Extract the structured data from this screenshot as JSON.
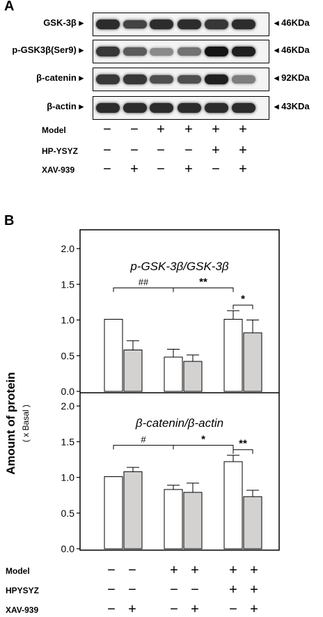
{
  "panel_a": {
    "letter": "A",
    "blots": [
      {
        "label": "GSK-3β",
        "kda": "46KDa",
        "intensities": [
          0.9,
          0.8,
          0.9,
          0.9,
          0.85,
          0.9
        ]
      },
      {
        "label": "p-GSK3β(Ser9)",
        "kda": "46KDa",
        "intensities": [
          0.85,
          0.7,
          0.5,
          0.6,
          1.0,
          0.95
        ]
      },
      {
        "label": "β-catenin",
        "kda": "92KDa",
        "intensities": [
          0.85,
          0.85,
          0.75,
          0.75,
          0.95,
          0.55
        ]
      },
      {
        "label": "β-actin",
        "kda": "43KDa",
        "intensities": [
          0.9,
          0.9,
          0.9,
          0.9,
          0.9,
          0.9
        ]
      }
    ],
    "conditions": [
      {
        "label": "Model",
        "signs": [
          "−",
          "−",
          "+",
          "+",
          "+",
          "+"
        ]
      },
      {
        "label": "HP-YSYZ",
        "signs": [
          "−",
          "−",
          "−",
          "−",
          "+",
          "+"
        ]
      },
      {
        "label": "XAV-939",
        "signs": [
          "−",
          "+",
          "−",
          "+",
          "−",
          "+"
        ]
      }
    ]
  },
  "panel_b": {
    "letter": "B",
    "y_axis_label": "Amount of protein",
    "y_axis_sublabel": "( x Basal )",
    "conditions": [
      {
        "label": "Model",
        "signs": [
          "−",
          "−",
          "+",
          "+",
          "+",
          "+"
        ]
      },
      {
        "label": "HPYSYZ",
        "signs": [
          "−",
          "−",
          "−",
          "−",
          "+",
          "+"
        ]
      },
      {
        "label": "XAV-939",
        "signs": [
          "−",
          "+",
          "−",
          "+",
          "−",
          "+"
        ]
      }
    ]
  },
  "chart_data": [
    {
      "type": "bar",
      "title": "p-GSK-3β/GSK-3β",
      "ylim": [
        0,
        2.2
      ],
      "yticks": [
        "0.0",
        "0.5",
        "1.0",
        "1.5",
        "2.0"
      ],
      "values": [
        1.01,
        0.58,
        0.48,
        0.42,
        1.01,
        0.82
      ],
      "errors": [
        0,
        0.13,
        0.11,
        0.09,
        0.12,
        0.18
      ],
      "colors": [
        "#ffffff",
        "#d4d1d1",
        "#ffffff",
        "#d4d1d1",
        "#ffffff",
        "#d4d1d1"
      ],
      "significance": [
        {
          "label": "##",
          "from": 0,
          "to": 2
        },
        {
          "label": "**",
          "from": 2,
          "to": 4
        },
        {
          "label": "*",
          "from": 4,
          "to": 5
        }
      ]
    },
    {
      "type": "bar",
      "title": "β-catenin/β-actin",
      "ylim": [
        0,
        2.2
      ],
      "yticks": [
        "0.0",
        "0.5",
        "1.0",
        "1.5",
        "2.0"
      ],
      "values": [
        1.01,
        1.08,
        0.83,
        0.79,
        1.22,
        0.73
      ],
      "errors": [
        0,
        0.06,
        0.06,
        0.13,
        0.09,
        0.09
      ],
      "colors": [
        "#ffffff",
        "#d4d1d1",
        "#ffffff",
        "#d4d1d1",
        "#ffffff",
        "#d4d1d1"
      ],
      "significance": [
        {
          "label": "#",
          "from": 0,
          "to": 2
        },
        {
          "label": "*",
          "from": 2,
          "to": 4
        },
        {
          "label": "**",
          "from": 4,
          "to": 5
        }
      ]
    }
  ]
}
